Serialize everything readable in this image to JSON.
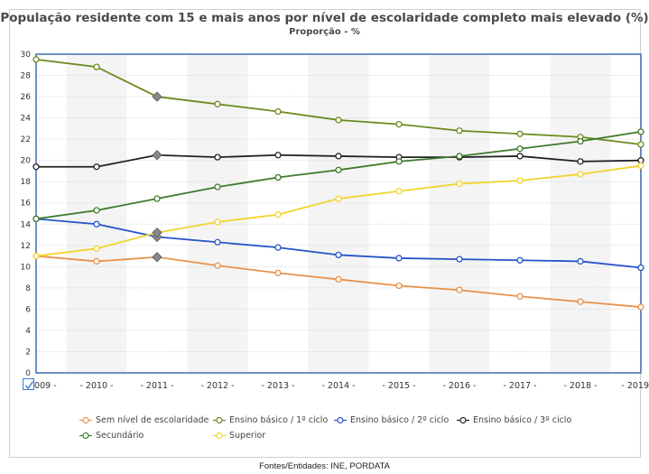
{
  "source": "Fontes/Entidades: INE, PORDATA",
  "checkbox": {
    "checked": true,
    "icon": "check-icon"
  },
  "chart_data": {
    "type": "line",
    "title": "População residente com 15 e mais anos por nível de escolaridade completo mais elevado (%)",
    "subtitle": "Proporção - %",
    "categories": [
      "2009",
      "2010",
      "2011",
      "2012",
      "2013",
      "2014",
      "2015",
      "2016",
      "2017",
      "2018",
      "2019"
    ],
    "tick_labels": [
      "2009 -",
      "- 2010 -",
      "- 2011 -",
      "- 2012 -",
      "- 2013 -",
      "- 2014 -",
      "- 2015 -",
      "- 2016 -",
      "- 2017 -",
      "- 2018 -",
      "- 2019"
    ],
    "ylim": [
      0,
      30
    ],
    "yticks": [
      0,
      2,
      4,
      6,
      8,
      10,
      12,
      14,
      16,
      18,
      20,
      22,
      24,
      26,
      28,
      30
    ],
    "grid": true,
    "legend_position": "bottom",
    "series": [
      {
        "name": "Sem nível de escolaridade",
        "color": "#e8924a",
        "values": [
          11.0,
          10.5,
          10.9,
          10.1,
          9.4,
          8.8,
          8.2,
          7.8,
          7.2,
          6.7,
          6.2
        ]
      },
      {
        "name": "Ensino básico / 1º ciclo",
        "color": "#6b8a1c",
        "values": [
          29.5,
          28.8,
          26.0,
          25.3,
          24.6,
          23.8,
          23.4,
          22.8,
          22.5,
          22.2,
          21.5
        ]
      },
      {
        "name": "Ensino básico / 2º ciclo",
        "color": "#2653c9",
        "values": [
          14.5,
          14.0,
          12.8,
          12.3,
          11.8,
          11.1,
          10.8,
          10.7,
          10.6,
          10.5,
          9.9
        ]
      },
      {
        "name": "Ensino básico / 3º ciclo",
        "color": "#222222",
        "values": [
          19.4,
          19.4,
          20.5,
          20.3,
          20.5,
          20.4,
          20.3,
          20.3,
          20.4,
          19.9,
          20.0
        ]
      },
      {
        "name": "Secundário",
        "color": "#3f7a2a",
        "values": [
          14.5,
          15.3,
          16.4,
          17.5,
          18.4,
          19.1,
          19.9,
          20.4,
          21.1,
          21.8,
          22.7
        ]
      },
      {
        "name": "Superior",
        "color": "#f2d42e",
        "values": [
          11.0,
          11.7,
          13.2,
          14.2,
          14.9,
          16.4,
          17.1,
          17.8,
          18.1,
          18.7,
          19.5
        ]
      }
    ],
    "highlighted_points": [
      {
        "series": "Sem nível de escolaridade",
        "category": "2011"
      },
      {
        "series": "Ensino básico / 1º ciclo",
        "category": "2011"
      },
      {
        "series": "Ensino básico / 2º ciclo",
        "category": "2011"
      },
      {
        "series": "Ensino básico / 3º ciclo",
        "category": "2011"
      },
      {
        "series": "Superior",
        "category": "2011"
      }
    ]
  }
}
